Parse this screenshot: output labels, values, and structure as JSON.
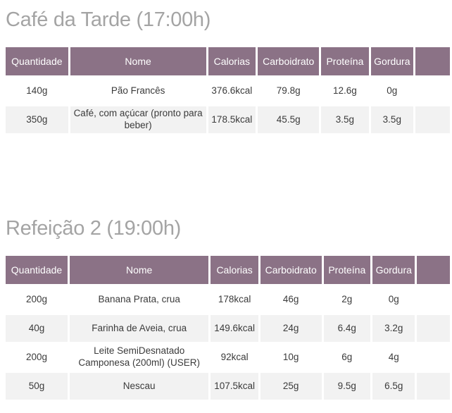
{
  "colors": {
    "header_bg": "#8b7286",
    "alt_row_bg": "#f2f2f2",
    "heading_text": "#a4a4a4",
    "body_text": "#3b3b3b",
    "header_text": "#ffffff"
  },
  "sections": [
    {
      "title": "Café da Tarde (17:00h)",
      "columns": [
        "Quantidade",
        "Nome",
        "Calorias",
        "Carboidrato",
        "Proteína",
        "Gordura"
      ],
      "rows": [
        [
          "140g",
          "Pão Francês",
          "376.6kcal",
          "79.8g",
          "12.6g",
          "0g"
        ],
        [
          "350g",
          "Café, com açúcar (pronto para beber)",
          "178.5kcal",
          "45.5g",
          "3.5g",
          "3.5g"
        ]
      ]
    },
    {
      "title": "Refeição 2 (19:00h)",
      "columns": [
        "Quantidade",
        "Nome",
        "Calorias",
        "Carboidrato",
        "Proteína",
        "Gordura"
      ],
      "rows": [
        [
          "200g",
          "Banana Prata, crua",
          "178kcal",
          "46g",
          "2g",
          "0g"
        ],
        [
          "40g",
          "Farinha de Aveia, crua",
          "149.6kcal",
          "24g",
          "6.4g",
          "3.2g"
        ],
        [
          "200g",
          "Leite SemiDesnatado Camponesa (200ml) (USER)",
          "92kcal",
          "10g",
          "6g",
          "4g"
        ],
        [
          "50g",
          "Nescau",
          "107.5kcal",
          "25g",
          "9.5g",
          "6.5g"
        ]
      ]
    }
  ]
}
